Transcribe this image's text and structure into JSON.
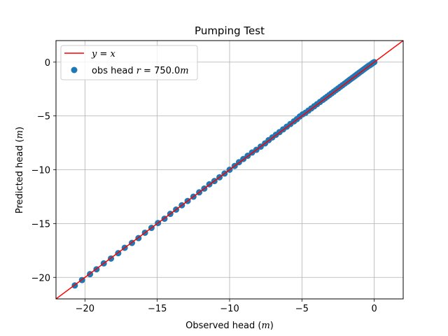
{
  "chart_data": {
    "type": "scatter",
    "title": "Pumping Test",
    "xlabel_prefix": "Observed head (",
    "xlabel_var": "m",
    "xlabel_suffix": ")",
    "ylabel_prefix": "Predicted head (",
    "ylabel_var": "m",
    "ylabel_suffix": ")",
    "xlim": [
      -22,
      2
    ],
    "ylim": [
      -22,
      2
    ],
    "xticks": [
      -20,
      -15,
      -10,
      -5,
      0
    ],
    "yticks": [
      -20,
      -15,
      -10,
      -5,
      0
    ],
    "xtick_labels": [
      "−20",
      "−15",
      "−10",
      "−5",
      "0"
    ],
    "ytick_labels": [
      "−20",
      "−15",
      "−10",
      "−5",
      "0"
    ],
    "grid": true,
    "legend_position": "top-left",
    "line": {
      "label_lhs": "y",
      "label_eq": " = ",
      "label_rhs": "x",
      "color": "#ff0000"
    },
    "scatter": {
      "label_prefix": "obs head ",
      "label_var": "r",
      "label_eq": " = 750.0",
      "label_unit": "m",
      "color": "#1f77b4",
      "points": [
        [
          -20.7,
          -20.75
        ],
        [
          -20.2,
          -20.25
        ],
        [
          -19.65,
          -19.7
        ],
        [
          -19.2,
          -19.25
        ],
        [
          -18.7,
          -18.7
        ],
        [
          -18.2,
          -18.25
        ],
        [
          -17.7,
          -17.75
        ],
        [
          -17.25,
          -17.25
        ],
        [
          -16.75,
          -16.8
        ],
        [
          -16.3,
          -16.35
        ],
        [
          -15.85,
          -15.85
        ],
        [
          -15.4,
          -15.4
        ],
        [
          -14.95,
          -14.95
        ],
        [
          -14.5,
          -14.55
        ],
        [
          -14.1,
          -14.1
        ],
        [
          -13.7,
          -13.7
        ],
        [
          -13.3,
          -13.3
        ],
        [
          -12.9,
          -12.9
        ],
        [
          -12.5,
          -12.5
        ],
        [
          -12.1,
          -12.1
        ],
        [
          -11.75,
          -11.75
        ],
        [
          -11.4,
          -11.35
        ],
        [
          -11.05,
          -11.05
        ],
        [
          -10.7,
          -10.7
        ],
        [
          -10.35,
          -10.35
        ],
        [
          -10.0,
          -10.0
        ],
        [
          -9.65,
          -9.65
        ],
        [
          -9.35,
          -9.3
        ],
        [
          -9.05,
          -9.0
        ],
        [
          -8.75,
          -8.7
        ],
        [
          -8.45,
          -8.4
        ],
        [
          -8.15,
          -8.15
        ],
        [
          -7.85,
          -7.85
        ],
        [
          -7.55,
          -7.55
        ],
        [
          -7.3,
          -7.25
        ],
        [
          -7.05,
          -7.0
        ],
        [
          -6.8,
          -6.75
        ],
        [
          -6.55,
          -6.5
        ],
        [
          -6.3,
          -6.25
        ],
        [
          -6.05,
          -6.0
        ],
        [
          -5.8,
          -5.75
        ],
        [
          -5.55,
          -5.5
        ],
        [
          -5.35,
          -5.3
        ],
        [
          -5.15,
          -5.05
        ],
        [
          -4.95,
          -4.85
        ],
        [
          -4.75,
          -4.7
        ],
        [
          -4.55,
          -4.5
        ],
        [
          -4.35,
          -4.3
        ],
        [
          -4.15,
          -4.1
        ],
        [
          -3.95,
          -3.9
        ],
        [
          -3.75,
          -3.7
        ],
        [
          -3.55,
          -3.5
        ],
        [
          -3.4,
          -3.35
        ],
        [
          -3.25,
          -3.2
        ],
        [
          -3.1,
          -3.05
        ],
        [
          -2.95,
          -2.9
        ],
        [
          -2.8,
          -2.75
        ],
        [
          -2.65,
          -2.6
        ],
        [
          -2.5,
          -2.45
        ],
        [
          -2.35,
          -2.3
        ],
        [
          -2.2,
          -2.15
        ],
        [
          -2.05,
          -2.0
        ],
        [
          -1.9,
          -1.85
        ],
        [
          -1.8,
          -1.75
        ],
        [
          -1.7,
          -1.65
        ],
        [
          -1.6,
          -1.55
        ],
        [
          -1.5,
          -1.45
        ],
        [
          -1.4,
          -1.35
        ],
        [
          -1.3,
          -1.25
        ],
        [
          -1.2,
          -1.15
        ],
        [
          -1.1,
          -1.05
        ],
        [
          -1.0,
          -0.95
        ],
        [
          -0.9,
          -0.85
        ],
        [
          -0.8,
          -0.75
        ],
        [
          -0.7,
          -0.65
        ],
        [
          -0.6,
          -0.55
        ],
        [
          -0.5,
          -0.45
        ],
        [
          -0.4,
          -0.35
        ],
        [
          -0.3,
          -0.28
        ],
        [
          -0.2,
          -0.18
        ],
        [
          -0.12,
          -0.1
        ],
        [
          -0.05,
          -0.04
        ],
        [
          0.0,
          0.0
        ]
      ]
    }
  }
}
